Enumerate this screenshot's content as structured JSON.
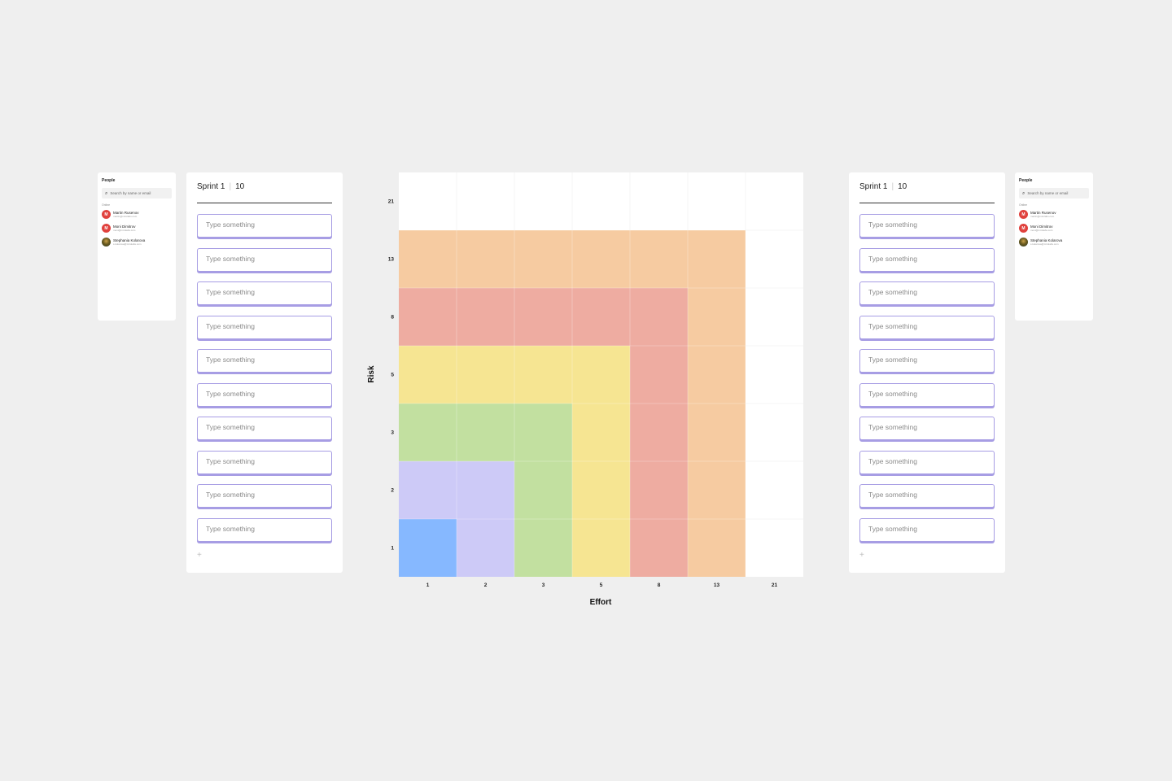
{
  "people_panel": {
    "title": "People",
    "search_placeholder": "Search by name or email",
    "section_label": "Online",
    "people": [
      {
        "initial": "M",
        "name": "Martin Rusenov",
        "email": "martin@mirolabs.com",
        "avatar": "initial",
        "color": "#e0413d"
      },
      {
        "initial": "M",
        "name": "Moni Dimitrov",
        "email": "moni@mirolabs.com",
        "avatar": "initial",
        "color": "#e0413d"
      },
      {
        "initial": "S",
        "name": "Stephania Kolarova",
        "email": "s.kolarova@mirolabs.com",
        "avatar": "photo",
        "color": "#3a4a25"
      }
    ]
  },
  "sprint_panel": {
    "title": "Sprint 1",
    "count": "10",
    "card_placeholder": "Type something",
    "cards": [
      "Type something",
      "Type something",
      "Type something",
      "Type something",
      "Type something",
      "Type something",
      "Type something",
      "Type something",
      "Type something",
      "Type something"
    ],
    "add_label": "+"
  },
  "matrix": {
    "y_axis_title": "Risk",
    "x_axis_title": "Effort",
    "x_ticks": [
      "1",
      "2",
      "3",
      "5",
      "8",
      "13",
      "21"
    ],
    "y_ticks": [
      "1",
      "2",
      "3",
      "5",
      "8",
      "13",
      "21"
    ],
    "zone_colors": {
      "blue": "#86b8ff",
      "purple": "#cdcaf7",
      "green": "#c2e0a0",
      "yellow": "#f6e592",
      "red": "#eeaca1",
      "orange": "#f6cba1",
      "empty": "#ffffff"
    },
    "grid_rows_bottom_to_top": [
      [
        "blue",
        "purple",
        "green",
        "yellow",
        "red",
        "orange",
        "empty"
      ],
      [
        "purple",
        "purple",
        "green",
        "yellow",
        "red",
        "orange",
        "empty"
      ],
      [
        "green",
        "green",
        "green",
        "yellow",
        "red",
        "orange",
        "empty"
      ],
      [
        "yellow",
        "yellow",
        "yellow",
        "yellow",
        "red",
        "orange",
        "empty"
      ],
      [
        "red",
        "red",
        "red",
        "red",
        "red",
        "orange",
        "empty"
      ],
      [
        "orange",
        "orange",
        "orange",
        "orange",
        "orange",
        "orange",
        "empty"
      ],
      [
        "empty",
        "empty",
        "empty",
        "empty",
        "empty",
        "empty",
        "empty"
      ]
    ]
  }
}
